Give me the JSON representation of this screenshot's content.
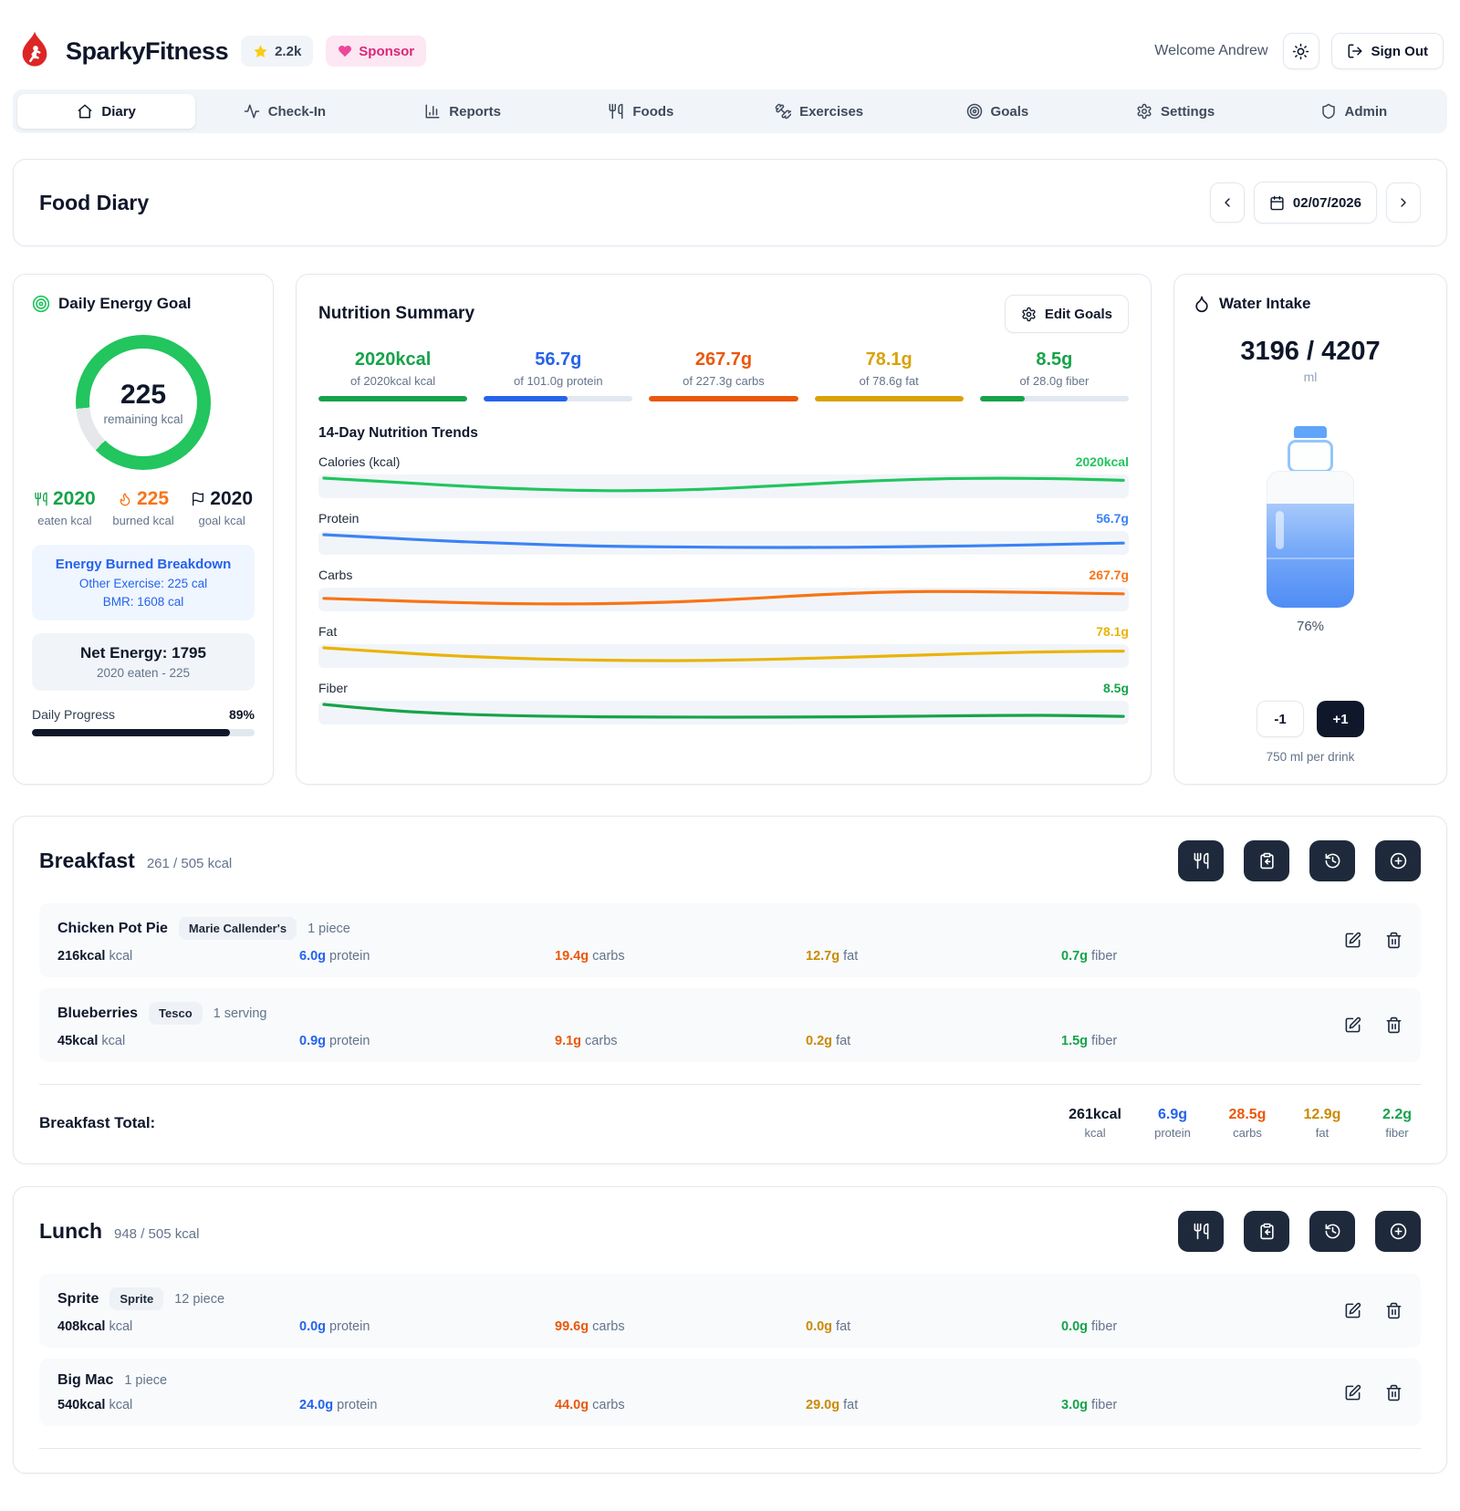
{
  "colors": {
    "accent_green": "#16a34a",
    "ring_green": "#22c55e",
    "accent_blue": "#2563eb",
    "accent_orange": "#ea580c",
    "accent_amber": "#ca8a04",
    "dark_button": "#1e2a3b",
    "brand_red": "#dc2626",
    "sponsor_pink": "#db2777",
    "water_blue": "#3b82f6"
  },
  "header": {
    "app_name": "SparkyFitness",
    "stars": "2.2k",
    "sponsor_label": "Sponsor",
    "welcome": "Welcome Andrew",
    "sign_out_label": "Sign Out"
  },
  "nav": {
    "tabs": [
      {
        "label": "Diary",
        "icon": "home-icon",
        "active": true
      },
      {
        "label": "Check-In",
        "icon": "activity-icon",
        "active": false
      },
      {
        "label": "Reports",
        "icon": "bar-chart-icon",
        "active": false
      },
      {
        "label": "Foods",
        "icon": "utensils-icon",
        "active": false
      },
      {
        "label": "Exercises",
        "icon": "dumbbell-icon",
        "active": false
      },
      {
        "label": "Goals",
        "icon": "target-icon",
        "active": false
      },
      {
        "label": "Settings",
        "icon": "gear-icon",
        "active": false
      },
      {
        "label": "Admin",
        "icon": "shield-icon",
        "active": false
      }
    ]
  },
  "diary_bar": {
    "title": "Food Diary",
    "date": "02/07/2026"
  },
  "energy": {
    "title": "Daily Energy Goal",
    "remaining_value": "225",
    "remaining_label": "remaining kcal",
    "ring_pct": 89,
    "eaten": "2020",
    "eaten_label": "eaten kcal",
    "burned": "225",
    "burned_label": "burned kcal",
    "goal": "2020",
    "goal_label": "goal kcal",
    "breakdown_title": "Energy Burned Breakdown",
    "breakdown_line1": "Other Exercise: 225 cal",
    "breakdown_line2": "BMR: 1608 cal",
    "net_title": "Net Energy: 1795",
    "net_sub": "2020 eaten - 225",
    "progress_label": "Daily Progress",
    "progress_pct_label": "89%",
    "progress_value": 89
  },
  "nutrition": {
    "title": "Nutrition Summary",
    "edit_goals_label": "Edit Goals",
    "stats": [
      {
        "value": "2020kcal",
        "sub": "of 2020kcal kcal",
        "color": "#16a34a",
        "pct": 100
      },
      {
        "value": "56.7g",
        "sub": "of 101.0g protein",
        "color": "#2563eb",
        "pct": 56
      },
      {
        "value": "267.7g",
        "sub": "of 227.3g carbs",
        "color": "#ea580c",
        "pct": 100
      },
      {
        "value": "78.1g",
        "sub": "of 78.6g fat",
        "color": "#d9a206",
        "pct": 100
      },
      {
        "value": "8.5g",
        "sub": "of 28.0g fiber",
        "color": "#16a34a",
        "pct": 30
      }
    ],
    "trends_title": "14-Day Nutrition Trends"
  },
  "chart_data": {
    "type": "line",
    "title": "14-Day Nutrition Trends",
    "x": [
      1,
      2,
      3,
      4,
      5,
      6,
      7,
      8,
      9,
      10,
      11,
      12,
      13,
      14
    ],
    "xlabel": "day",
    "grid": false,
    "legend_position": "none",
    "series": [
      {
        "name": "Calories (kcal)",
        "current_label": "2020kcal",
        "color": "#22c55e",
        "values": [
          2100,
          1980,
          1840,
          1730,
          1660,
          1640,
          1680,
          1780,
          1900,
          2010,
          2080,
          2100,
          2080,
          2020
        ]
      },
      {
        "name": "Protein",
        "current_label": "56.7g",
        "color": "#3b82f6",
        "values": [
          78,
          70,
          62,
          56,
          51,
          48,
          47,
          46,
          46,
          47,
          49,
          51,
          54,
          57
        ]
      },
      {
        "name": "Carbs",
        "current_label": "267.7g",
        "color": "#f97316",
        "values": [
          240,
          228,
          215,
          207,
          205,
          210,
          222,
          240,
          262,
          278,
          284,
          280,
          274,
          268
        ]
      },
      {
        "name": "Fat",
        "current_label": "78.1g",
        "color": "#eab308",
        "values": [
          86,
          76,
          67,
          61,
          57,
          55,
          55,
          57,
          61,
          65,
          70,
          74,
          77,
          78
        ]
      },
      {
        "name": "Fiber",
        "current_label": "8.5g",
        "color": "#16a34a",
        "values": [
          14.5,
          11.5,
          9.8,
          8.9,
          8.4,
          8.2,
          8.1,
          8.1,
          8.2,
          8.4,
          8.7,
          9.0,
          9.0,
          8.5
        ]
      }
    ]
  },
  "water": {
    "title": "Water Intake",
    "current": "3196 / 4207",
    "unit": "ml",
    "pct_label": "76%",
    "fill_pct": 76,
    "minus_label": "-1",
    "plus_label": "+1",
    "per_drink": "750 ml per drink"
  },
  "units": {
    "kcal": "kcal",
    "protein": "protein",
    "carbs": "carbs",
    "fat": "fat",
    "fiber": "fiber"
  },
  "meals": [
    {
      "name": "Breakfast",
      "summary": "261 / 505 kcal",
      "items": [
        {
          "name": "Chicken Pot Pie",
          "brand": "Marie Callender's",
          "qty": "1 piece",
          "kcal": "216kcal",
          "protein": "6.0g",
          "carbs": "19.4g",
          "fat": "12.7g",
          "fiber": "0.7g"
        },
        {
          "name": "Blueberries",
          "brand": "Tesco",
          "qty": "1 serving",
          "kcal": "45kcal",
          "protein": "0.9g",
          "carbs": "9.1g",
          "fat": "0.2g",
          "fiber": "1.5g"
        }
      ],
      "total_label": "Breakfast Total:",
      "totals": {
        "kcal": "261kcal",
        "protein": "6.9g",
        "carbs": "28.5g",
        "fat": "12.9g",
        "fiber": "2.2g"
      }
    },
    {
      "name": "Lunch",
      "summary": "948 / 505 kcal",
      "items": [
        {
          "name": "Sprite",
          "brand": "Sprite",
          "qty": "12 piece",
          "kcal": "408kcal",
          "protein": "0.0g",
          "carbs": "99.6g",
          "fat": "0.0g",
          "fiber": "0.0g"
        },
        {
          "name": "Big Mac",
          "brand": "",
          "qty": "1 piece",
          "kcal": "540kcal",
          "protein": "24.0g",
          "carbs": "44.0g",
          "fat": "29.0g",
          "fiber": "3.0g"
        }
      ]
    }
  ]
}
